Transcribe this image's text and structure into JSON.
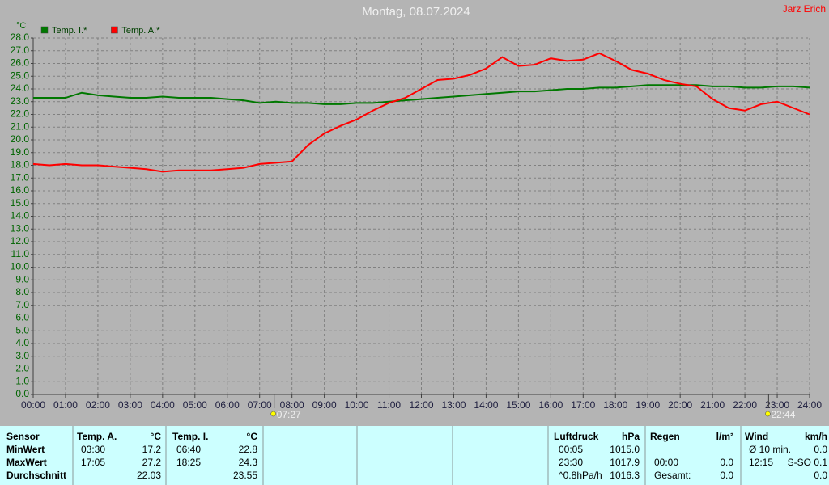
{
  "chart_data": {
    "type": "line",
    "title": "Montag, 08.07.2024",
    "credit": "Jarz Erich",
    "y_label": "°C",
    "x": [
      0,
      0.5,
      1,
      1.5,
      2,
      2.5,
      3,
      3.5,
      4,
      4.5,
      5,
      5.5,
      6,
      6.5,
      7,
      7.5,
      8,
      8.5,
      9,
      9.5,
      10,
      10.5,
      11,
      11.5,
      12,
      12.5,
      13,
      13.5,
      14,
      14.5,
      15,
      15.5,
      16,
      16.5,
      17,
      17.5,
      18,
      18.5,
      19,
      19.5,
      20,
      20.5,
      21,
      21.5,
      22,
      22.5,
      23,
      23.5,
      24
    ],
    "series": [
      {
        "name": "Temp. I.*",
        "color": "#007800",
        "values": [
          23.3,
          23.3,
          23.3,
          23.7,
          23.5,
          23.4,
          23.3,
          23.3,
          23.4,
          23.3,
          23.3,
          23.3,
          23.2,
          23.1,
          22.9,
          23.0,
          22.9,
          22.9,
          22.8,
          22.8,
          22.9,
          22.9,
          23.0,
          23.1,
          23.2,
          23.3,
          23.4,
          23.5,
          23.6,
          23.7,
          23.8,
          23.8,
          23.9,
          24.0,
          24.0,
          24.1,
          24.1,
          24.2,
          24.3,
          24.3,
          24.3,
          24.3,
          24.2,
          24.2,
          24.1,
          24.1,
          24.2,
          24.2,
          24.1
        ]
      },
      {
        "name": "Temp. A.*",
        "color": "#ff0000",
        "values": [
          18.1,
          18.0,
          18.1,
          18.0,
          18.0,
          17.9,
          17.8,
          17.7,
          17.5,
          17.6,
          17.6,
          17.6,
          17.7,
          17.8,
          18.1,
          18.2,
          18.3,
          19.6,
          20.5,
          21.1,
          21.6,
          22.3,
          22.9,
          23.3,
          24.0,
          24.7,
          24.8,
          25.1,
          25.6,
          26.5,
          25.8,
          25.9,
          26.4,
          26.2,
          26.3,
          26.8,
          26.2,
          25.5,
          25.2,
          24.7,
          24.4,
          24.2,
          23.2,
          22.5,
          22.3,
          22.8,
          23.0,
          22.5,
          22.0
        ]
      }
    ],
    "xlim": [
      0,
      24
    ],
    "xticks": [
      {
        "value": 0,
        "label": "00:00"
      },
      {
        "value": 1,
        "label": "01:00"
      },
      {
        "value": 2,
        "label": "02:00"
      },
      {
        "value": 3,
        "label": "03:00"
      },
      {
        "value": 4,
        "label": "04:00"
      },
      {
        "value": 5,
        "label": "05:00"
      },
      {
        "value": 6,
        "label": "06:00"
      },
      {
        "value": 7,
        "label": "07:00"
      },
      {
        "value": 8,
        "label": "08:00"
      },
      {
        "value": 9,
        "label": "09:00"
      },
      {
        "value": 10,
        "label": "10:00"
      },
      {
        "value": 11,
        "label": "11:00"
      },
      {
        "value": 12,
        "label": "12:00"
      },
      {
        "value": 13,
        "label": "13:00"
      },
      {
        "value": 14,
        "label": "14:00"
      },
      {
        "value": 15,
        "label": "15:00"
      },
      {
        "value": 16,
        "label": "16:00"
      },
      {
        "value": 17,
        "label": "17:00"
      },
      {
        "value": 18,
        "label": "18:00"
      },
      {
        "value": 19,
        "label": "19:00"
      },
      {
        "value": 20,
        "label": "20:00"
      },
      {
        "value": 21,
        "label": "21:00"
      },
      {
        "value": 22,
        "label": "22:00"
      },
      {
        "value": 23,
        "label": "23:00"
      },
      {
        "value": 24,
        "label": "24:00"
      }
    ],
    "ylim": [
      0,
      28
    ],
    "yticks": [
      {
        "value": 0,
        "label": "0.0"
      },
      {
        "value": 1,
        "label": "1.0"
      },
      {
        "value": 2,
        "label": "2.0"
      },
      {
        "value": 3,
        "label": "3.0"
      },
      {
        "value": 4,
        "label": "4.0"
      },
      {
        "value": 5,
        "label": "5.0"
      },
      {
        "value": 6,
        "label": "6.0"
      },
      {
        "value": 7,
        "label": "7.0"
      },
      {
        "value": 8,
        "label": "8.0"
      },
      {
        "value": 9,
        "label": "9.0"
      },
      {
        "value": 10,
        "label": "10.0"
      },
      {
        "value": 11,
        "label": "11.0"
      },
      {
        "value": 12,
        "label": "12.0"
      },
      {
        "value": 13,
        "label": "13.0"
      },
      {
        "value": 14,
        "label": "14.0"
      },
      {
        "value": 15,
        "label": "15.0"
      },
      {
        "value": 16,
        "label": "16.0"
      },
      {
        "value": 17,
        "label": "17.0"
      },
      {
        "value": 18,
        "label": "18.0"
      },
      {
        "value": 19,
        "label": "19.0"
      },
      {
        "value": 20,
        "label": "20.0"
      },
      {
        "value": 21,
        "label": "21.0"
      },
      {
        "value": 22,
        "label": "22.0"
      },
      {
        "value": 23,
        "label": "23.0"
      },
      {
        "value": 24,
        "label": "24.0"
      },
      {
        "value": 25,
        "label": "25.0"
      },
      {
        "value": 26,
        "label": "26.0"
      },
      {
        "value": 27,
        "label": "27.0"
      },
      {
        "value": 28,
        "label": "28.0"
      }
    ],
    "grid": true,
    "annotations": [
      {
        "x": 7.45,
        "label": "07:27"
      },
      {
        "x": 22.7333,
        "label": "22:44"
      }
    ]
  },
  "table": {
    "columns": [
      {
        "header": [
          "Sensor"
        ],
        "rows": [
          [
            "MinWert"
          ],
          [
            "MaxWert"
          ],
          [
            "Durchschnitt"
          ]
        ]
      },
      {
        "header": [
          "Temp. A.",
          "°C"
        ],
        "rows": [
          [
            "03:30",
            "17.2"
          ],
          [
            "17:05",
            "27.2"
          ],
          [
            null,
            "22.03"
          ]
        ]
      },
      {
        "header": [
          "Temp. I.",
          "°C"
        ],
        "rows": [
          [
            "06:40",
            "22.8"
          ],
          [
            "18:25",
            "24.3"
          ],
          [
            null,
            "23.55"
          ]
        ]
      },
      {
        "header": [
          "Luftdruck",
          "hPa"
        ],
        "rows": [
          [
            "00:05",
            "1015.0"
          ],
          [
            "23:30",
            "1017.9"
          ],
          [
            "^0.8hPa/h",
            "1016.3"
          ]
        ]
      },
      {
        "header": [
          "Regen",
          "l/m²"
        ],
        "rows": [
          [
            null,
            null
          ],
          [
            "00:00",
            "0.0"
          ],
          [
            "Gesamt:",
            "0.0"
          ]
        ]
      },
      {
        "header": [
          "Wind",
          "km/h"
        ],
        "rows": [
          [
            "Ø 10 min.",
            "0.0"
          ],
          [
            "12:15",
            "S-SO 0.1"
          ],
          [
            null,
            "0.0"
          ]
        ]
      }
    ]
  }
}
